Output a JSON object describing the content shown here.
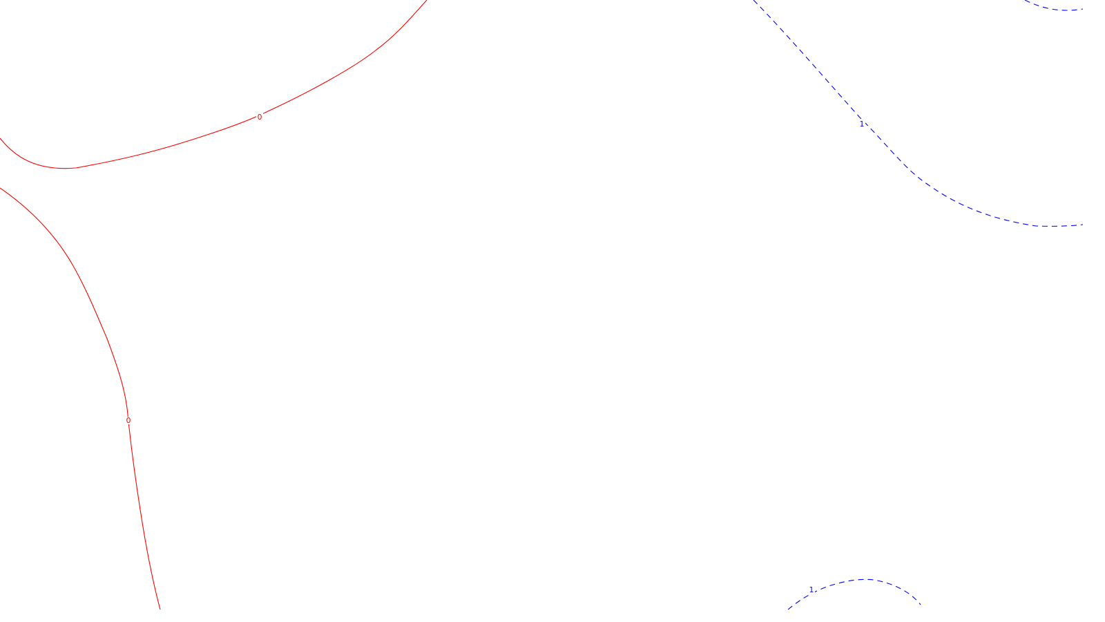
{
  "chart_data": {
    "type": "contour",
    "title": "",
    "xlabel": "",
    "ylabel": "",
    "grid": false,
    "legend": "none",
    "levels": [
      {
        "level": 0,
        "label": "0",
        "color": "#ff0000",
        "line_style": "solid",
        "contours": [
          {
            "name": "contour-0-upper",
            "label_shown": true
          },
          {
            "name": "contour-0-left",
            "label_shown": true
          }
        ]
      },
      {
        "level": 1,
        "label": "1",
        "color": "#0000ff",
        "line_style": "dashed",
        "contours": [
          {
            "name": "contour-1-upper-right",
            "label_shown": true
          },
          {
            "name": "contour-1-corner",
            "label_shown": false
          },
          {
            "name": "contour-1-bottom",
            "label_shown": true
          }
        ]
      }
    ]
  }
}
